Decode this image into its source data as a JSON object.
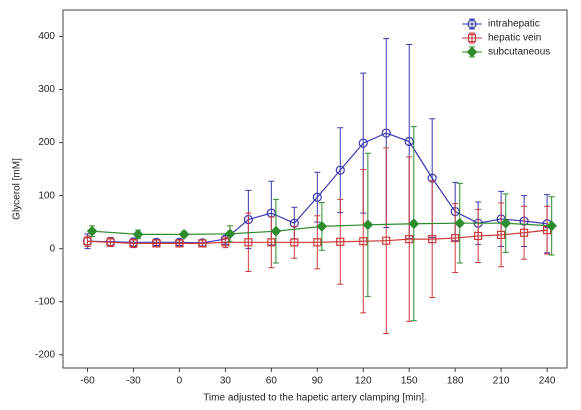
{
  "chart_data": {
    "type": "line",
    "x_label": "Time adjusted to the hapetic artery clamping [min].",
    "y_label": "Glycerol [mM]",
    "xlim": [
      -76,
      253
    ],
    "ylim": [
      -225,
      450
    ],
    "xticks": [
      -60,
      -30,
      0,
      30,
      60,
      90,
      120,
      150,
      180,
      210,
      240
    ],
    "yticks": [
      -200,
      -100,
      0,
      100,
      200,
      300,
      400
    ],
    "legend": "top-right",
    "series": [
      {
        "name": "intrahepatic",
        "color": "#3a3ab0",
        "marker": "circle",
        "x": [
          -60,
          -45,
          -30,
          -15,
          0,
          15,
          30,
          45,
          60,
          75,
          90,
          105,
          120,
          135,
          150,
          165,
          180,
          195,
          210,
          225,
          240
        ],
        "values": [
          14,
          13,
          12,
          12,
          12,
          11,
          18,
          55,
          67,
          48,
          97,
          148,
          199,
          218,
          202,
          133,
          70,
          48,
          56,
          52,
          47
        ],
        "errors": [
          14,
          8,
          8,
          6,
          6,
          6,
          10,
          55,
          60,
          30,
          47,
          80,
          132,
          178,
          183,
          112,
          55,
          40,
          52,
          48,
          55
        ]
      },
      {
        "name": "hepatic vein",
        "color": "#cc3a3a",
        "marker": "square",
        "x": [
          -60,
          -45,
          -30,
          -15,
          0,
          15,
          30,
          45,
          60,
          75,
          90,
          105,
          120,
          135,
          150,
          165,
          180,
          195,
          210,
          225,
          240
        ],
        "values": [
          14,
          12,
          10,
          10,
          10,
          10,
          12,
          12,
          12,
          12,
          12,
          13,
          14,
          15,
          18,
          18,
          20,
          24,
          26,
          30,
          35
        ],
        "errors": [
          10,
          8,
          8,
          6,
          6,
          6,
          10,
          55,
          48,
          30,
          50,
          80,
          135,
          175,
          155,
          110,
          65,
          50,
          60,
          50,
          45
        ]
      },
      {
        "name": "subcutaneous",
        "color": "#2e8b2e",
        "marker": "diamond",
        "x": [
          -57,
          -27,
          3,
          33,
          63,
          93,
          123,
          153,
          183,
          213,
          243
        ],
        "values": [
          33,
          27,
          27,
          28,
          33,
          42,
          45,
          47,
          48,
          48,
          43
        ],
        "errors": [
          10,
          8,
          5,
          15,
          60,
          45,
          135,
          183,
          75,
          55,
          55
        ]
      }
    ]
  }
}
